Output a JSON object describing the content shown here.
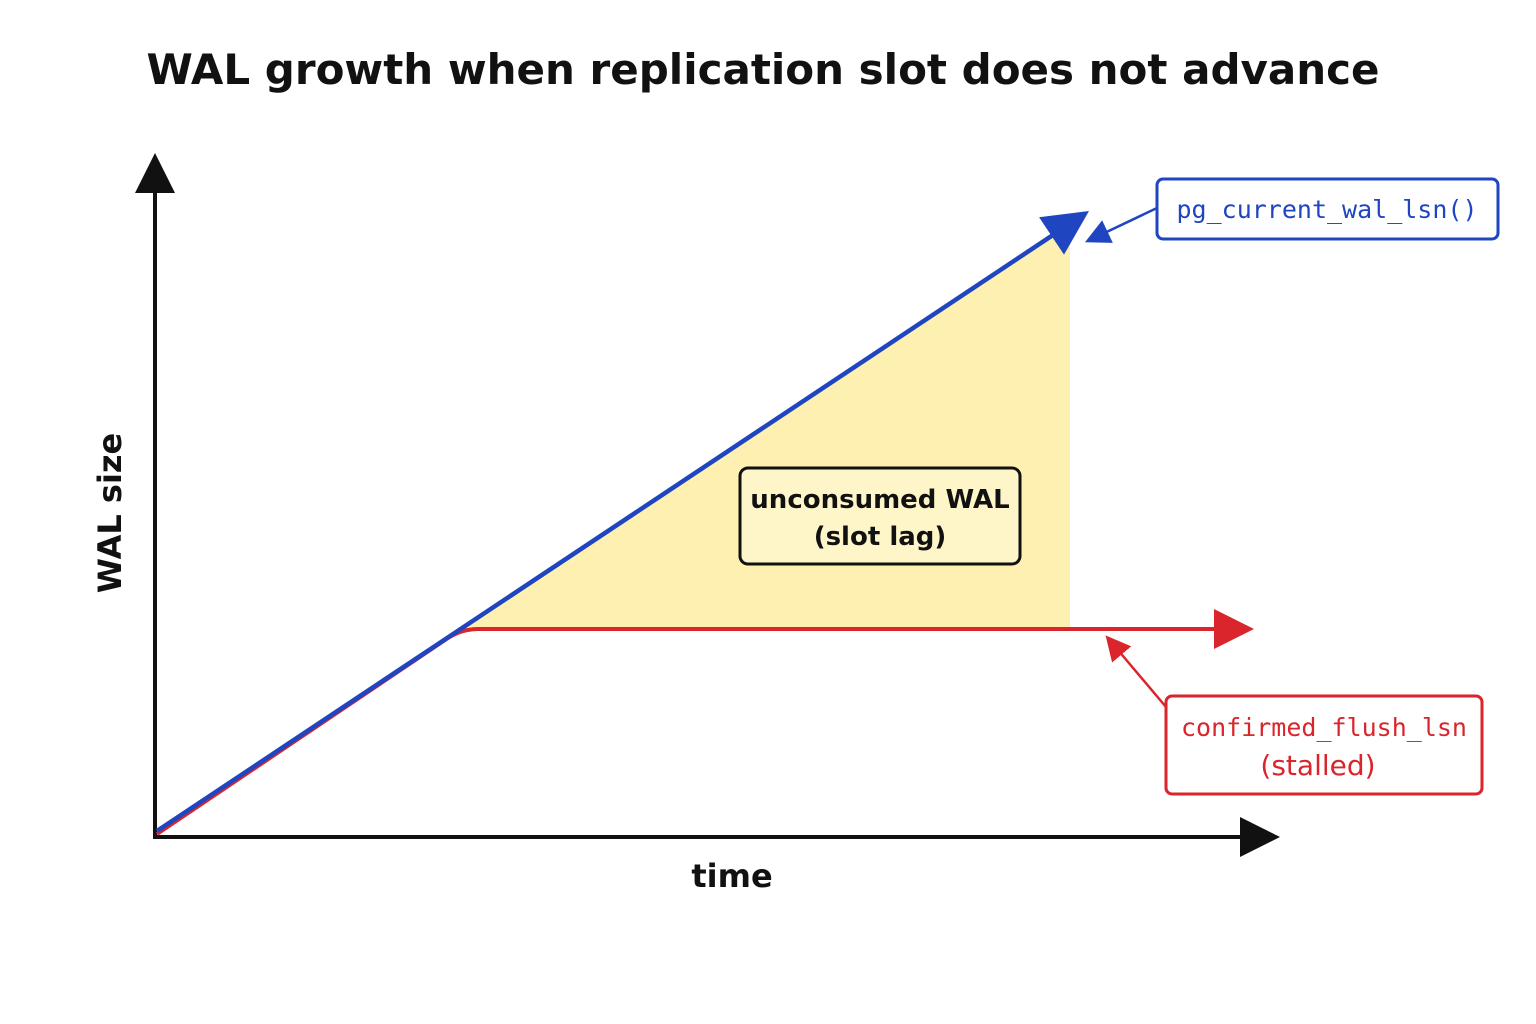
{
  "title": "WAL growth when replication slot does not advance",
  "axes": {
    "y_label": "WAL size",
    "x_label": "time"
  },
  "region": {
    "line1": "unconsumed WAL",
    "line2": "(slot lag)",
    "fill_color": "#fdf0b0"
  },
  "series": {
    "current": {
      "label": "pg_current_wal_lsn()",
      "color": "#1f45c0"
    },
    "confirmed": {
      "label": "confirmed_flush_lsn",
      "sublabel": "(stalled)",
      "color": "#d9252b"
    }
  }
}
